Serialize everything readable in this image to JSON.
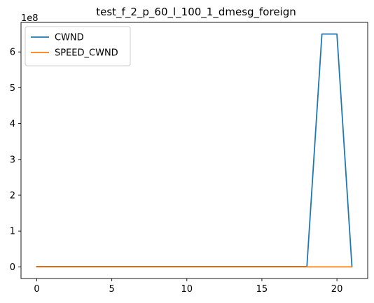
{
  "chart_data": {
    "type": "line",
    "title": "test_f_2_p_60_l_100_1_dmesg_foreign",
    "xlabel": "",
    "ylabel": "",
    "y_offset_label": "1e8",
    "xlim": [
      -1.05,
      22.05
    ],
    "ylim": [
      -0.325,
      6.825
    ],
    "y_unit_scale": 100000000,
    "xticks": [
      0,
      5,
      10,
      15,
      20
    ],
    "yticks": [
      0,
      1,
      2,
      3,
      4,
      5,
      6
    ],
    "grid": false,
    "legend_position": "top-left",
    "series": [
      {
        "name": "CWND",
        "color": "#1f77b4",
        "x": [
          0,
          1,
          2,
          3,
          4,
          5,
          6,
          7,
          8,
          9,
          10,
          11,
          12,
          13,
          14,
          15,
          16,
          17,
          18,
          19,
          20,
          21
        ],
        "y": [
          0.01,
          0.01,
          0.01,
          0.01,
          0.01,
          0.01,
          0.01,
          0.01,
          0.01,
          0.01,
          0.01,
          0.01,
          0.01,
          0.01,
          0.01,
          0.01,
          0.01,
          0.01,
          0.01,
          6.5,
          6.5,
          0.01
        ]
      },
      {
        "name": "SPEED_CWND",
        "color": "#ff7f0e",
        "x": [
          0,
          1,
          2,
          3,
          4,
          5,
          6,
          7,
          8,
          9,
          10,
          11,
          12,
          13,
          14,
          15,
          16,
          17,
          18,
          19,
          20,
          21
        ],
        "y": [
          0,
          0,
          0,
          0,
          0,
          0,
          0,
          0,
          0,
          0,
          0,
          0,
          0,
          0,
          0,
          0,
          0,
          0,
          0,
          0,
          0,
          0
        ]
      }
    ]
  }
}
